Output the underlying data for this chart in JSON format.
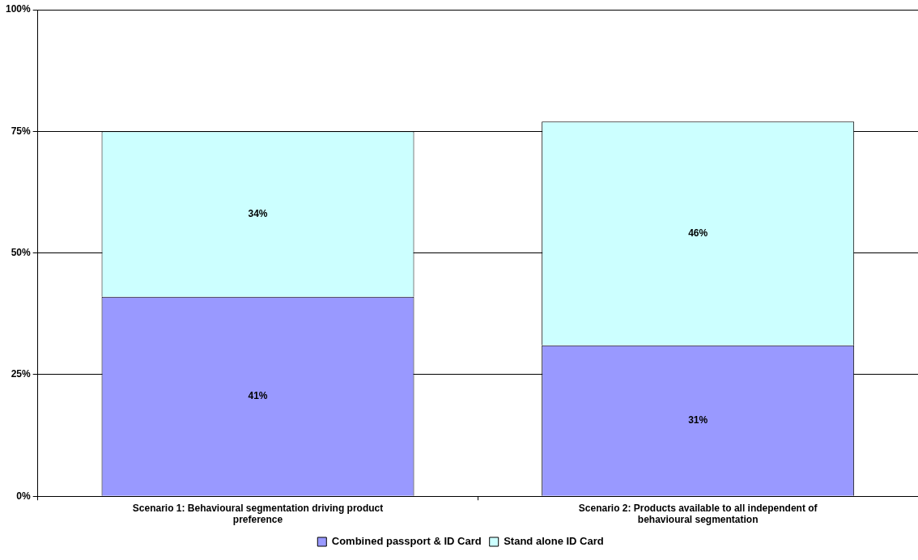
{
  "chart_data": {
    "type": "bar",
    "stacked": true,
    "categories": [
      "Scenario 1: Behavioural segmentation driving product preference",
      "Scenario 2: Products available to all independent of behavioural segmentation"
    ],
    "series": [
      {
        "name": "Combined passport & ID Card",
        "color": "#9999ff",
        "values": [
          41,
          31
        ],
        "value_labels": [
          "41%",
          "31%"
        ]
      },
      {
        "name": "Stand alone ID Card",
        "color": "#ccffff",
        "values": [
          34,
          46
        ],
        "value_labels": [
          "34%",
          "46%"
        ]
      }
    ],
    "ylim": [
      0,
      100
    ],
    "yticks": [
      {
        "value": 0,
        "label": "0%"
      },
      {
        "value": 25,
        "label": "25%"
      },
      {
        "value": 50,
        "label": "50%"
      },
      {
        "value": 75,
        "label": "75%"
      },
      {
        "value": 100,
        "label": "100%"
      }
    ],
    "grid": "y",
    "legend": "bottom"
  }
}
